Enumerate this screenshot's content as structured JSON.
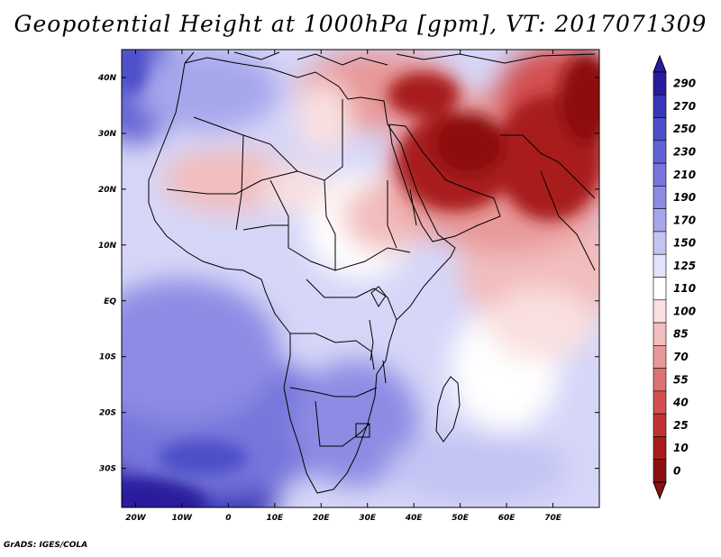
{
  "title": "Geopotential Height at 1000hPa [gpm], VT: 2017071309",
  "credit": "GrADS: IGES/COLA",
  "map": {
    "variable": "Geopotential Height",
    "level": "1000hPa",
    "units": "gpm",
    "valid_time": "2017071309",
    "lon_range": [
      -23,
      80
    ],
    "lat_range": [
      -37,
      45
    ],
    "x_ticks": [
      "20W",
      "10W",
      "0",
      "10E",
      "20E",
      "30E",
      "40E",
      "50E",
      "60E",
      "70E"
    ],
    "y_ticks": [
      "40N",
      "30N",
      "20N",
      "10N",
      "EQ",
      "10S",
      "20S",
      "30S"
    ]
  },
  "colorbar": {
    "labels": [
      "290",
      "270",
      "250",
      "230",
      "210",
      "190",
      "170",
      "150",
      "125",
      "110",
      "100",
      "85",
      "70",
      "55",
      "40",
      "25",
      "10",
      "0"
    ],
    "colors": [
      "#2a1c9c",
      "#3a36b8",
      "#4e4fc8",
      "#6262d4",
      "#7676dc",
      "#8c8ce4",
      "#a6a6ec",
      "#c4c4f4",
      "#e2e2fa",
      "#ffffff",
      "#fae0e0",
      "#f2bdbd",
      "#e89898",
      "#dc7272",
      "#d25050",
      "#c33232",
      "#a81c1c",
      "#8c1010"
    ]
  },
  "colors": {
    "strong_high": "#3a36b8",
    "moderate_high": "#a6a6ec",
    "neutral": "#ffffff",
    "low": "#e89898",
    "strong_low": "#a81c1c"
  }
}
